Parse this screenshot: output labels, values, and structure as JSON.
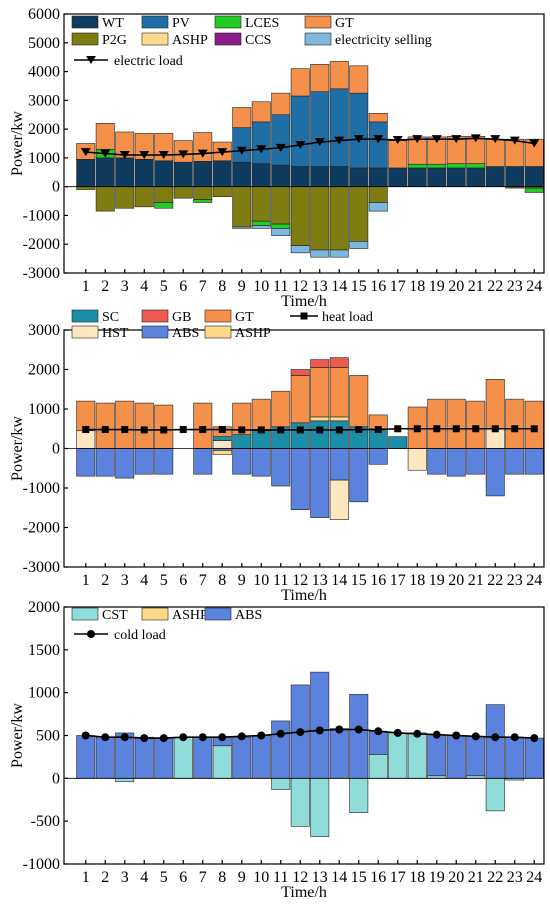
{
  "colors": {
    "WT": "#0f3b5f",
    "PV": "#1f6fa6",
    "LCES": "#22cc22",
    "GT": "#f5904a",
    "P2G": "#7e7d12",
    "ASHP": "#ffd98a",
    "CCS": "#8b1a8b",
    "electricity selling": "#7fb8de",
    "SC": "#1d8ea8",
    "GB": "#ee5a4f",
    "HST": "#fde6c0",
    "ABS": "#5b82dc",
    "CST": "#8fdcd9",
    "line": "#000000"
  },
  "chart_data": [
    {
      "type": "bar",
      "stacked": true,
      "xlabel": "Time/h",
      "ylabel": "Power/kw",
      "ylim": [
        -3000,
        6000
      ],
      "yticks": [
        "6000",
        "5000",
        "4000",
        "3000",
        "2000",
        "1000",
        "0",
        "-1000",
        "-2000",
        "-3000"
      ],
      "categories": [
        "1",
        "2",
        "3",
        "4",
        "5",
        "6",
        "7",
        "8",
        "9",
        "10",
        "11",
        "12",
        "13",
        "14",
        "15",
        "16",
        "17",
        "18",
        "19",
        "20",
        "21",
        "22",
        "23",
        "24"
      ],
      "legend_position": "top",
      "series": [
        {
          "name": "WT",
          "values": [
            950,
            1000,
            1000,
            950,
            900,
            850,
            880,
            900,
            850,
            800,
            750,
            700,
            700,
            700,
            650,
            650,
            650,
            650,
            650,
            650,
            650,
            700,
            700,
            700
          ]
        },
        {
          "name": "PV",
          "values": [
            0,
            0,
            0,
            0,
            0,
            0,
            0,
            0,
            1200,
            1450,
            1750,
            2450,
            2600,
            2700,
            2600,
            1600,
            0,
            0,
            0,
            0,
            0,
            0,
            0,
            0
          ]
        },
        {
          "name": "LCES",
          "values": [
            0,
            300,
            0,
            0,
            0,
            0,
            0,
            0,
            0,
            0,
            0,
            0,
            0,
            0,
            0,
            0,
            0,
            130,
            130,
            150,
            150,
            0,
            0,
            0
          ]
        },
        {
          "name": "GT",
          "values": [
            550,
            900,
            900,
            900,
            950,
            750,
            1000,
            650,
            700,
            700,
            750,
            950,
            950,
            950,
            950,
            300,
            950,
            950,
            950,
            950,
            950,
            950,
            950,
            950
          ]
        },
        {
          "name": "P2G",
          "values": [
            -100,
            -850,
            -750,
            -700,
            -550,
            -400,
            -450,
            -350,
            -1400,
            -1200,
            -1300,
            -2050,
            -2200,
            -2200,
            -1900,
            -550,
            0,
            0,
            0,
            0,
            0,
            0,
            -50,
            -50
          ]
        },
        {
          "name": "ASHP",
          "values": [
            0,
            0,
            0,
            0,
            0,
            0,
            0,
            0,
            0,
            0,
            0,
            0,
            0,
            0,
            0,
            0,
            0,
            0,
            0,
            0,
            0,
            0,
            0,
            0
          ]
        },
        {
          "name": "CCS",
          "values": [
            0,
            0,
            0,
            0,
            0,
            0,
            0,
            0,
            0,
            0,
            0,
            0,
            0,
            0,
            0,
            0,
            0,
            0,
            0,
            0,
            0,
            0,
            0,
            0
          ]
        },
        {
          "name": "LCES",
          "values": [
            0,
            0,
            0,
            0,
            -200,
            0,
            -100,
            0,
            0,
            -150,
            -150,
            0,
            0,
            0,
            0,
            0,
            0,
            0,
            0,
            0,
            0,
            0,
            0,
            -150
          ]
        },
        {
          "name": "electricity selling",
          "values": [
            0,
            0,
            0,
            0,
            0,
            0,
            0,
            0,
            -50,
            -100,
            -250,
            -250,
            -250,
            -250,
            -250,
            -300,
            0,
            0,
            0,
            0,
            0,
            0,
            0,
            0
          ]
        }
      ],
      "line": {
        "name": "electric load",
        "values": [
          1200,
          1150,
          1100,
          1100,
          1100,
          1120,
          1150,
          1200,
          1250,
          1300,
          1350,
          1450,
          1550,
          1600,
          1650,
          1650,
          1620,
          1650,
          1650,
          1650,
          1680,
          1650,
          1600,
          1500
        ]
      }
    },
    {
      "type": "bar",
      "stacked": true,
      "xlabel": "Time/h",
      "ylabel": "Power/kw",
      "ylim": [
        -3000,
        3000
      ],
      "yticks": [
        "3000",
        "2000",
        "1000",
        "0",
        "-1000",
        "-2000",
        "-3000"
      ],
      "categories": [
        "1",
        "2",
        "3",
        "4",
        "5",
        "6",
        "7",
        "8",
        "9",
        "10",
        "11",
        "12",
        "13",
        "14",
        "15",
        "16",
        "17",
        "18",
        "19",
        "20",
        "21",
        "22",
        "23",
        "24"
      ],
      "legend_position": "top",
      "series": [
        {
          "name": "HST",
          "values": [
            450,
            0,
            0,
            0,
            0,
            0,
            0,
            200,
            0,
            0,
            0,
            0,
            0,
            0,
            0,
            0,
            0,
            0,
            0,
            0,
            0,
            500,
            0,
            0
          ]
        },
        {
          "name": "SC",
          "values": [
            0,
            0,
            0,
            0,
            0,
            0,
            0,
            100,
            350,
            450,
            550,
            650,
            700,
            700,
            550,
            500,
            300,
            0,
            0,
            0,
            0,
            0,
            0,
            0
          ]
        },
        {
          "name": "ASHP",
          "values": [
            0,
            0,
            0,
            0,
            0,
            0,
            0,
            0,
            0,
            0,
            0,
            0,
            100,
            100,
            0,
            0,
            0,
            0,
            0,
            0,
            0,
            0,
            0,
            0
          ]
        },
        {
          "name": "GT",
          "values": [
            750,
            1150,
            1200,
            1150,
            1100,
            0,
            1150,
            250,
            800,
            800,
            900,
            1200,
            1250,
            1250,
            1300,
            350,
            0,
            1050,
            1250,
            1250,
            1200,
            1250,
            1250,
            1200
          ]
        },
        {
          "name": "GB",
          "values": [
            0,
            0,
            0,
            0,
            0,
            0,
            0,
            0,
            0,
            0,
            0,
            150,
            200,
            250,
            0,
            0,
            0,
            0,
            0,
            0,
            0,
            0,
            0,
            0
          ]
        },
        {
          "name": "ABS",
          "values": [
            -700,
            -700,
            -750,
            -650,
            -650,
            0,
            -650,
            -50,
            -650,
            -700,
            -950,
            -1550,
            -1750,
            -800,
            -1350,
            -400,
            0,
            0,
            -650,
            -700,
            -650,
            -1200,
            -650,
            -650
          ]
        },
        {
          "name": "ASHP",
          "values": [
            0,
            0,
            0,
            0,
            0,
            0,
            0,
            -100,
            0,
            0,
            0,
            0,
            0,
            0,
            0,
            0,
            0,
            0,
            0,
            0,
            0,
            0,
            0,
            0
          ]
        },
        {
          "name": "HST",
          "values": [
            0,
            0,
            0,
            0,
            0,
            0,
            0,
            0,
            0,
            0,
            0,
            0,
            0,
            -1000,
            0,
            0,
            0,
            -550,
            0,
            0,
            0,
            0,
            0,
            0
          ]
        }
      ],
      "line": {
        "name": "heat load",
        "values": [
          480,
          480,
          480,
          470,
          470,
          480,
          480,
          480,
          470,
          470,
          470,
          470,
          470,
          470,
          480,
          480,
          500,
          500,
          500,
          500,
          500,
          500,
          500,
          500
        ]
      }
    },
    {
      "type": "bar",
      "stacked": true,
      "xlabel": "Time/h",
      "ylabel": "Power/kw",
      "ylim": [
        -1000,
        2000
      ],
      "yticks": [
        "2000",
        "1500",
        "1000",
        "500",
        "0",
        "-500",
        "-1000"
      ],
      "categories": [
        "1",
        "2",
        "3",
        "4",
        "5",
        "6",
        "7",
        "8",
        "9",
        "10",
        "11",
        "12",
        "13",
        "14",
        "15",
        "16",
        "17",
        "18",
        "19",
        "20",
        "21",
        "22",
        "23",
        "24"
      ],
      "legend_position": "top",
      "series": [
        {
          "name": "CST",
          "values": [
            0,
            0,
            0,
            0,
            0,
            480,
            0,
            380,
            0,
            0,
            0,
            0,
            0,
            0,
            0,
            280,
            530,
            530,
            30,
            0,
            30,
            0,
            0,
            0
          ]
        },
        {
          "name": "ABS",
          "values": [
            500,
            480,
            530,
            480,
            470,
            0,
            480,
            100,
            480,
            500,
            670,
            1090,
            1240,
            580,
            980,
            270,
            0,
            0,
            480,
            500,
            460,
            860,
            480,
            470
          ]
        },
        {
          "name": "CST",
          "values": [
            0,
            0,
            -40,
            0,
            0,
            0,
            0,
            0,
            0,
            0,
            -130,
            -560,
            -680,
            0,
            -400,
            0,
            0,
            0,
            0,
            0,
            0,
            -380,
            -20,
            0
          ]
        }
      ],
      "line": {
        "name": "cold load",
        "values": [
          500,
          480,
          480,
          470,
          470,
          480,
          480,
          480,
          490,
          500,
          520,
          540,
          560,
          570,
          570,
          550,
          530,
          520,
          510,
          500,
          490,
          480,
          480,
          470
        ]
      }
    }
  ]
}
